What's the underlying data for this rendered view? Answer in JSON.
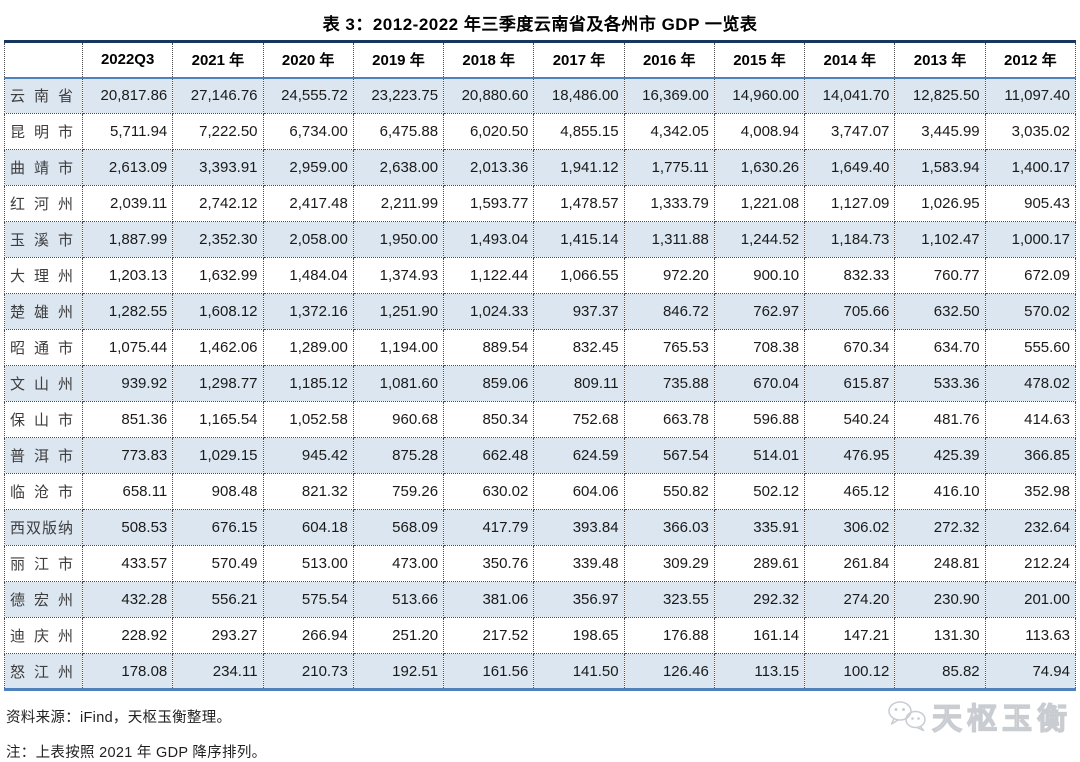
{
  "title": "表 3：2012-2022 年三季度云南省及各州市 GDP 一览表",
  "table": {
    "columns": [
      "",
      "2022Q3",
      "2021 年",
      "2020 年",
      "2019 年",
      "2018 年",
      "2017 年",
      "2016 年",
      "2015 年",
      "2014 年",
      "2013 年",
      "2012 年"
    ],
    "rows": [
      {
        "name": "云南省",
        "values": [
          "20,817.86",
          "27,146.76",
          "24,555.72",
          "23,223.75",
          "20,880.60",
          "18,486.00",
          "16,369.00",
          "14,960.00",
          "14,041.70",
          "12,825.50",
          "11,097.40"
        ]
      },
      {
        "name": "昆明市",
        "values": [
          "5,711.94",
          "7,222.50",
          "6,734.00",
          "6,475.88",
          "6,020.50",
          "4,855.15",
          "4,342.05",
          "4,008.94",
          "3,747.07",
          "3,445.99",
          "3,035.02"
        ]
      },
      {
        "name": "曲靖市",
        "values": [
          "2,613.09",
          "3,393.91",
          "2,959.00",
          "2,638.00",
          "2,013.36",
          "1,941.12",
          "1,775.11",
          "1,630.26",
          "1,649.40",
          "1,583.94",
          "1,400.17"
        ]
      },
      {
        "name": "红河州",
        "values": [
          "2,039.11",
          "2,742.12",
          "2,417.48",
          "2,211.99",
          "1,593.77",
          "1,478.57",
          "1,333.79",
          "1,221.08",
          "1,127.09",
          "1,026.95",
          "905.43"
        ]
      },
      {
        "name": "玉溪市",
        "values": [
          "1,887.99",
          "2,352.30",
          "2,058.00",
          "1,950.00",
          "1,493.04",
          "1,415.14",
          "1,311.88",
          "1,244.52",
          "1,184.73",
          "1,102.47",
          "1,000.17"
        ]
      },
      {
        "name": "大理州",
        "values": [
          "1,203.13",
          "1,632.99",
          "1,484.04",
          "1,374.93",
          "1,122.44",
          "1,066.55",
          "972.20",
          "900.10",
          "832.33",
          "760.77",
          "672.09"
        ]
      },
      {
        "name": "楚雄州",
        "values": [
          "1,282.55",
          "1,608.12",
          "1,372.16",
          "1,251.90",
          "1,024.33",
          "937.37",
          "846.72",
          "762.97",
          "705.66",
          "632.50",
          "570.02"
        ]
      },
      {
        "name": "昭通市",
        "values": [
          "1,075.44",
          "1,462.06",
          "1,289.00",
          "1,194.00",
          "889.54",
          "832.45",
          "765.53",
          "708.38",
          "670.34",
          "634.70",
          "555.60"
        ]
      },
      {
        "name": "文山州",
        "values": [
          "939.92",
          "1,298.77",
          "1,185.12",
          "1,081.60",
          "859.06",
          "809.11",
          "735.88",
          "670.04",
          "615.87",
          "533.36",
          "478.02"
        ]
      },
      {
        "name": "保山市",
        "values": [
          "851.36",
          "1,165.54",
          "1,052.58",
          "960.68",
          "850.34",
          "752.68",
          "663.78",
          "596.88",
          "540.24",
          "481.76",
          "414.63"
        ]
      },
      {
        "name": "普洱市",
        "values": [
          "773.83",
          "1,029.15",
          "945.42",
          "875.28",
          "662.48",
          "624.59",
          "567.54",
          "514.01",
          "476.95",
          "425.39",
          "366.85"
        ]
      },
      {
        "name": "临沧市",
        "values": [
          "658.11",
          "908.48",
          "821.32",
          "759.26",
          "630.02",
          "604.06",
          "550.82",
          "502.12",
          "465.12",
          "416.10",
          "352.98"
        ]
      },
      {
        "name": "西双版纳",
        "values": [
          "508.53",
          "676.15",
          "604.18",
          "568.09",
          "417.79",
          "393.84",
          "366.03",
          "335.91",
          "306.02",
          "272.32",
          "232.64"
        ]
      },
      {
        "name": "丽江市",
        "values": [
          "433.57",
          "570.49",
          "513.00",
          "473.00",
          "350.76",
          "339.48",
          "309.29",
          "289.61",
          "261.84",
          "248.81",
          "212.24"
        ]
      },
      {
        "name": "德宏州",
        "values": [
          "432.28",
          "556.21",
          "575.54",
          "513.66",
          "381.06",
          "356.97",
          "323.55",
          "292.32",
          "274.20",
          "230.90",
          "201.00"
        ]
      },
      {
        "name": "迪庆州",
        "values": [
          "228.92",
          "293.27",
          "266.94",
          "251.20",
          "217.52",
          "198.65",
          "176.88",
          "161.14",
          "147.21",
          "131.30",
          "113.63"
        ]
      },
      {
        "name": "怒江州",
        "values": [
          "178.08",
          "234.11",
          "210.73",
          "192.51",
          "161.56",
          "141.50",
          "126.46",
          "113.15",
          "100.12",
          "85.82",
          "74.94"
        ]
      }
    ]
  },
  "footer": {
    "source": "资料来源：iFind，天枢玉衡整理。",
    "note": "注：上表按照 2021 年 GDP 降序排列。"
  },
  "watermark": {
    "brand": "天枢玉衡",
    "icon": "wechat-icon"
  },
  "colors": {
    "row_shade": "#dce6f1",
    "top_rule": "#17375e",
    "blue_rule": "#4f81bd",
    "dotted_border": "#4d4d4d",
    "watermark_gray": "#c9cdd1"
  }
}
